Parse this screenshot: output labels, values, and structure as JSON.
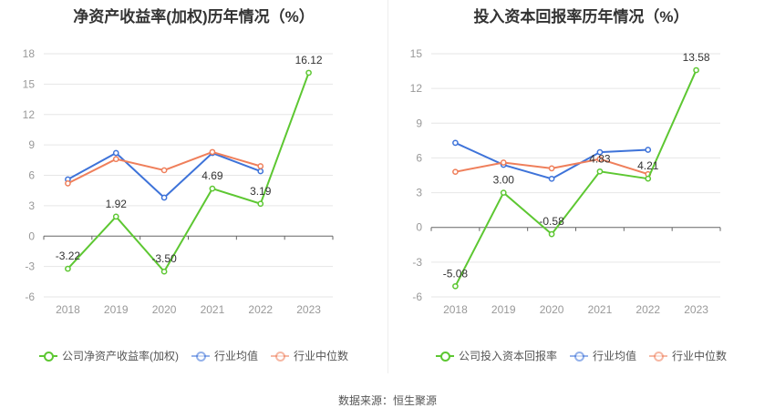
{
  "colors": {
    "company": "#5dc732",
    "industry_avg": "#3e73d9",
    "industry_median": "#ef7f5b"
  },
  "source_text": "数据来源：恒生聚源",
  "chart_data": [
    {
      "type": "line",
      "title": "净资产收益率(加权)历年情况（%）",
      "categories": [
        "2018",
        "2019",
        "2020",
        "2021",
        "2022",
        "2023"
      ],
      "ylim": [
        -6,
        18
      ],
      "yticks": [
        -6,
        -3,
        0,
        3,
        6,
        9,
        12,
        15,
        18
      ],
      "grid": true,
      "legend_position": "bottom",
      "series": [
        {
          "name": "公司净资产收益率(加权)",
          "key": "company",
          "values": [
            -3.22,
            1.92,
            -3.5,
            4.69,
            3.19,
            16.12
          ],
          "labels": [
            "-3.22",
            "1.92",
            "-3.50",
            "4.69",
            "3.19",
            "16.12"
          ]
        },
        {
          "name": "行业均值",
          "key": "industry_avg",
          "values": [
            5.6,
            8.2,
            3.8,
            8.2,
            6.4,
            null
          ]
        },
        {
          "name": "行业中位数",
          "key": "industry_median",
          "values": [
            5.2,
            7.6,
            6.5,
            8.3,
            6.9,
            null
          ]
        }
      ]
    },
    {
      "type": "line",
      "title": "投入资本回报率历年情况（%）",
      "categories": [
        "2018",
        "2019",
        "2020",
        "2021",
        "2022",
        "2023"
      ],
      "ylim": [
        -6,
        15
      ],
      "yticks": [
        -6,
        -3,
        0,
        3,
        6,
        9,
        12,
        15
      ],
      "grid": true,
      "legend_position": "bottom",
      "series": [
        {
          "name": "公司投入资本回报率",
          "key": "company",
          "values": [
            -5.08,
            3.0,
            -0.58,
            4.83,
            4.21,
            13.58
          ],
          "labels": [
            "-5.08",
            "3.00",
            "-0.58",
            "4.83",
            "4.21",
            "13.58"
          ]
        },
        {
          "name": "行业均值",
          "key": "industry_avg",
          "values": [
            7.3,
            5.4,
            4.2,
            6.5,
            6.7,
            null
          ]
        },
        {
          "name": "行业中位数",
          "key": "industry_median",
          "values": [
            4.8,
            5.6,
            5.1,
            5.9,
            4.6,
            null
          ]
        }
      ]
    }
  ]
}
